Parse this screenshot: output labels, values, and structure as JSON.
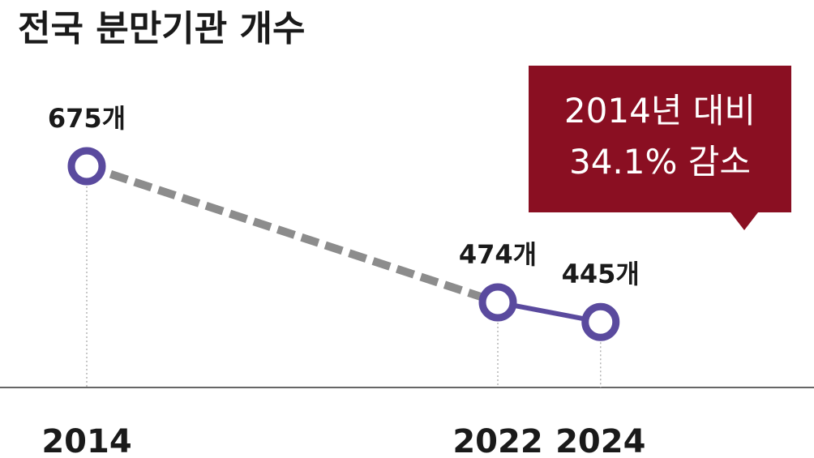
{
  "title": "전국 분만기관 개수",
  "colors": {
    "accent": "#5a4a9e",
    "dashed": "#8c8c8c",
    "callout_bg": "#8a0f22",
    "axis": "#666666"
  },
  "callout": {
    "line1": "2014년 대비",
    "line2": "34.1% 감소"
  },
  "chart_data": {
    "type": "line",
    "title": "전국 분만기관 개수",
    "x": [
      2014,
      2022,
      2024
    ],
    "x_tick_labels": [
      "2014",
      "2022",
      "2024"
    ],
    "values": [
      675,
      474,
      445
    ],
    "data_labels": [
      "675개",
      "474개",
      "445개"
    ],
    "segments": [
      {
        "from": "2014",
        "to": "2022",
        "style": "dashed",
        "color": "#8c8c8c"
      },
      {
        "from": "2022",
        "to": "2024",
        "style": "solid",
        "color": "#5a4a9e"
      }
    ],
    "xlabel": "",
    "ylabel": "",
    "grid": false,
    "annotation": "2014년 대비 34.1% 감소"
  }
}
